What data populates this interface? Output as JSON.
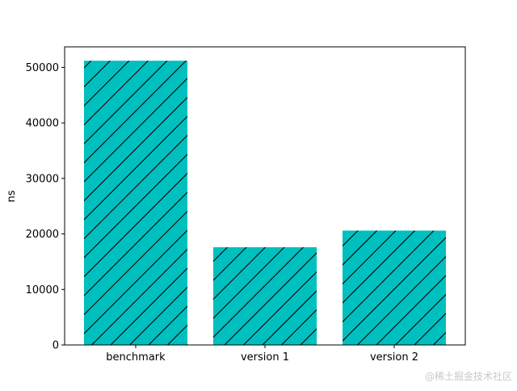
{
  "chart_data": {
    "type": "bar",
    "title": "",
    "xlabel": "",
    "ylabel": "ns",
    "categories": [
      "benchmark",
      "version 1",
      "version 2"
    ],
    "values": [
      51200,
      17600,
      20600
    ],
    "ylim": [
      0,
      53700
    ],
    "yticks": [
      0,
      10000,
      20000,
      30000,
      40000,
      50000
    ],
    "ytick_labels": [
      "0",
      "10000",
      "20000",
      "30000",
      "40000",
      "50000"
    ],
    "bar_color": "#00bfbf",
    "hatch": "/",
    "hatch_color": "#000000",
    "grid": false
  },
  "watermark": "@稀土掘金技术社区"
}
